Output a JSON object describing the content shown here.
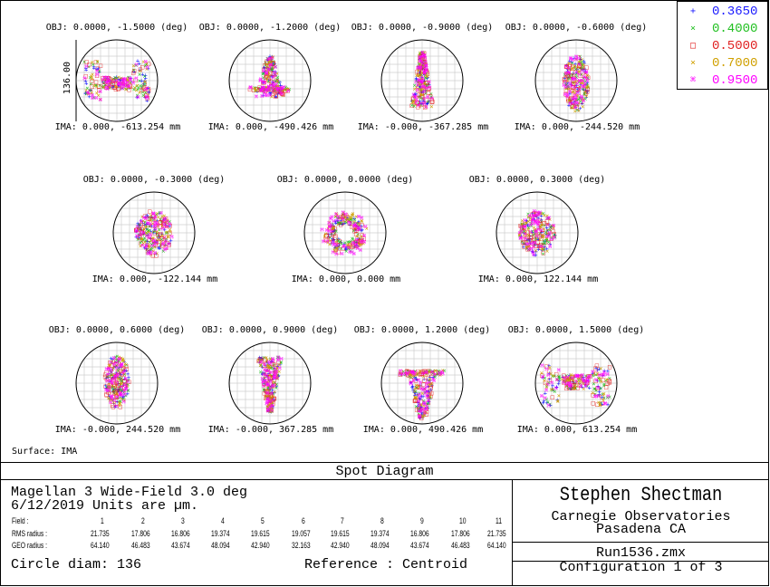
{
  "chart_data": {
    "type": "scatter",
    "title": "Spot Diagram",
    "surface_label": "Surface: IMA",
    "scale_bar_label": "136.00",
    "spot_colors": [
      "#1a1aff",
      "#22c022",
      "#e02020",
      "#d0a000",
      "#ff00ff"
    ],
    "legend": [
      {
        "wavelength": "0.3650",
        "symbol": "+",
        "color": "#1a1aff"
      },
      {
        "wavelength": "0.4000",
        "symbol": "×",
        "color": "#22c022"
      },
      {
        "wavelength": "0.5000",
        "symbol": "□",
        "color": "#e02020"
      },
      {
        "wavelength": "0.7000",
        "symbol": "×",
        "color": "#d0a000"
      },
      {
        "wavelength": "0.9500",
        "symbol": "⌘",
        "color": "#ff00ff"
      }
    ],
    "fields": [
      {
        "obj": "OBJ: 0.0000, -1.5000 (deg)",
        "ima": "IMA: 0.000, -613.254 mm",
        "shape": "wing-down"
      },
      {
        "obj": "OBJ: 0.0000, -1.2000 (deg)",
        "ima": "IMA: 0.000, -490.426 mm",
        "shape": "cone-down"
      },
      {
        "obj": "OBJ: 0.0000, -0.9000 (deg)",
        "ima": "IMA: -0.000, -367.285 mm",
        "shape": "tri-down"
      },
      {
        "obj": "OBJ: 0.0000, -0.6000 (deg)",
        "ima": "IMA: 0.000, -244.520 mm",
        "shape": "oval-down"
      },
      {
        "obj": "OBJ: 0.0000, -0.3000 (deg)",
        "ima": "IMA: 0.000, -122.144 mm",
        "shape": "disk"
      },
      {
        "obj": "OBJ: 0.0000, 0.0000 (deg)",
        "ima": "IMA: 0.000, 0.000 mm",
        "shape": "ring"
      },
      {
        "obj": "OBJ: 0.0000, 0.3000 (deg)",
        "ima": "IMA: 0.000, 122.144 mm",
        "shape": "disk"
      },
      {
        "obj": "OBJ: 0.0000, 0.6000 (deg)",
        "ima": "IMA: -0.000, 244.520 mm",
        "shape": "oval-up"
      },
      {
        "obj": "OBJ: 0.0000, 0.9000 (deg)",
        "ima": "IMA: -0.000, 367.285 mm",
        "shape": "tri-up"
      },
      {
        "obj": "OBJ: 0.0000, 1.2000 (deg)",
        "ima": "IMA: 0.000, 490.426 mm",
        "shape": "cone-up"
      },
      {
        "obj": "OBJ: 0.0000, 1.5000 (deg)",
        "ima": "IMA: 0.000, 613.254 mm",
        "shape": "wing-up"
      }
    ],
    "field_numbers": [
      "1",
      "2",
      "3",
      "4",
      "5",
      "6",
      "7",
      "8",
      "9",
      "10",
      "11"
    ],
    "rms_radius": [
      "21.735",
      "17.806",
      "16.806",
      "19.374",
      "19.615",
      "19.057",
      "19.615",
      "19.374",
      "16.806",
      "17.806",
      "21.735"
    ],
    "geo_radius": [
      "64.140",
      "46.483",
      "43.674",
      "48.094",
      "42.940",
      "32.163",
      "42.940",
      "48.094",
      "43.674",
      "46.483",
      "64.140"
    ]
  },
  "info": {
    "title_line1": "Magellan 3 Wide-Field 3.0 deg",
    "title_line2": "6/12/2019  Units are µm.",
    "field_label": "Field    :",
    "rms_label": "RMS radius :",
    "geo_label": "GEO radius :",
    "circle_diam": "Circle diam: 136",
    "reference": "Reference  : Centroid",
    "author": "Stephen Shectman",
    "org": "Carnegie Observatories",
    "location": "Pasadena CA",
    "file": "Run1536.zmx",
    "config": "Configuration 1 of 3"
  }
}
